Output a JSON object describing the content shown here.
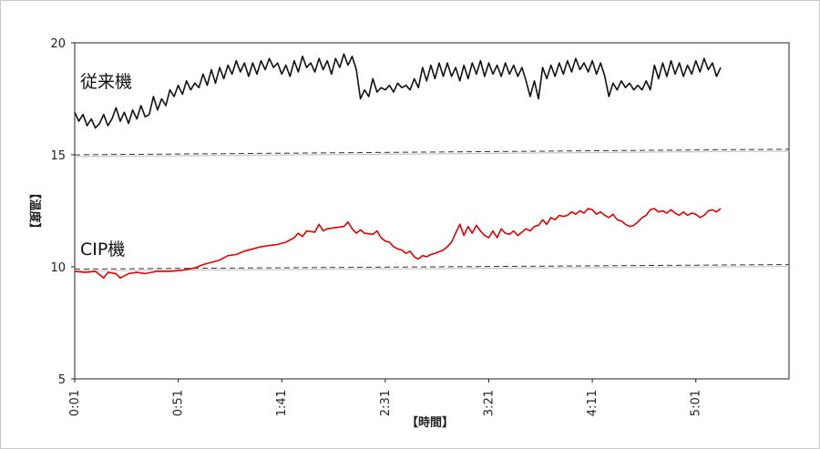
{
  "chart_data": {
    "type": "line",
    "xlabel": "【時間】",
    "ylabel": "【温度】",
    "ylim": [
      5,
      20
    ],
    "yticks": [
      5,
      10,
      15,
      20
    ],
    "x_tick_labels": [
      "0:01",
      "0:51",
      "1:41",
      "2:31",
      "3:21",
      "4:11",
      "5:01"
    ],
    "x_tick_positions_min": [
      1,
      51,
      101,
      151,
      201,
      251,
      301
    ],
    "xlim_min": [
      1,
      346
    ],
    "grid": false,
    "series": [
      {
        "name": "従来機",
        "color": "#111111",
        "points": [
          [
            1,
            16.9
          ],
          [
            3,
            16.5
          ],
          [
            5,
            16.8
          ],
          [
            7,
            16.3
          ],
          [
            9,
            16.6
          ],
          [
            11,
            16.2
          ],
          [
            13,
            16.4
          ],
          [
            15,
            16.8
          ],
          [
            17,
            16.3
          ],
          [
            19,
            16.6
          ],
          [
            21,
            17.1
          ],
          [
            23,
            16.5
          ],
          [
            25,
            16.9
          ],
          [
            27,
            16.4
          ],
          [
            29,
            17.0
          ],
          [
            31,
            16.6
          ],
          [
            33,
            17.2
          ],
          [
            35,
            16.7
          ],
          [
            37,
            16.8
          ],
          [
            39,
            17.6
          ],
          [
            41,
            17.0
          ],
          [
            43,
            17.5
          ],
          [
            45,
            17.2
          ],
          [
            47,
            17.9
          ],
          [
            49,
            17.6
          ],
          [
            51,
            18.1
          ],
          [
            53,
            17.7
          ],
          [
            55,
            18.3
          ],
          [
            57,
            17.9
          ],
          [
            59,
            18.2
          ],
          [
            61,
            18.0
          ],
          [
            63,
            18.6
          ],
          [
            65,
            18.1
          ],
          [
            67,
            18.8
          ],
          [
            69,
            18.2
          ],
          [
            71,
            18.9
          ],
          [
            73,
            18.4
          ],
          [
            75,
            19.0
          ],
          [
            77,
            18.6
          ],
          [
            79,
            19.2
          ],
          [
            81,
            18.7
          ],
          [
            83,
            19.1
          ],
          [
            85,
            18.5
          ],
          [
            87,
            19.1
          ],
          [
            89,
            18.6
          ],
          [
            91,
            19.2
          ],
          [
            93,
            18.8
          ],
          [
            95,
            19.3
          ],
          [
            97,
            18.9
          ],
          [
            99,
            19.1
          ],
          [
            101,
            18.6
          ],
          [
            103,
            19.0
          ],
          [
            105,
            18.5
          ],
          [
            107,
            19.2
          ],
          [
            109,
            18.7
          ],
          [
            111,
            19.4
          ],
          [
            113,
            18.9
          ],
          [
            115,
            19.1
          ],
          [
            117,
            18.7
          ],
          [
            119,
            19.3
          ],
          [
            121,
            18.8
          ],
          [
            123,
            19.2
          ],
          [
            125,
            18.6
          ],
          [
            127,
            19.3
          ],
          [
            129,
            18.9
          ],
          [
            131,
            19.5
          ],
          [
            133,
            19.0
          ],
          [
            135,
            19.4
          ],
          [
            137,
            18.8
          ],
          [
            139,
            17.5
          ],
          [
            141,
            17.9
          ],
          [
            143,
            17.6
          ],
          [
            145,
            18.4
          ],
          [
            147,
            17.8
          ],
          [
            149,
            18.0
          ],
          [
            151,
            17.9
          ],
          [
            153,
            18.1
          ],
          [
            155,
            17.8
          ],
          [
            157,
            18.2
          ],
          [
            159,
            18.0
          ],
          [
            161,
            18.1
          ],
          [
            163,
            17.9
          ],
          [
            165,
            18.4
          ],
          [
            167,
            18.0
          ],
          [
            169,
            18.9
          ],
          [
            171,
            18.3
          ],
          [
            173,
            19.0
          ],
          [
            175,
            18.4
          ],
          [
            177,
            19.1
          ],
          [
            179,
            18.5
          ],
          [
            181,
            19.1
          ],
          [
            183,
            18.5
          ],
          [
            185,
            18.9
          ],
          [
            187,
            18.3
          ],
          [
            189,
            19.0
          ],
          [
            191,
            18.4
          ],
          [
            193,
            19.1
          ],
          [
            195,
            18.6
          ],
          [
            197,
            19.2
          ],
          [
            199,
            18.5
          ],
          [
            201,
            19.1
          ],
          [
            203,
            18.6
          ],
          [
            205,
            19.0
          ],
          [
            207,
            18.5
          ],
          [
            209,
            19.1
          ],
          [
            211,
            18.6
          ],
          [
            213,
            19.0
          ],
          [
            215,
            18.5
          ],
          [
            217,
            18.9
          ],
          [
            219,
            18.3
          ],
          [
            221,
            17.6
          ],
          [
            223,
            18.3
          ],
          [
            225,
            17.5
          ],
          [
            227,
            18.9
          ],
          [
            229,
            18.4
          ],
          [
            231,
            19.0
          ],
          [
            233,
            18.5
          ],
          [
            235,
            19.1
          ],
          [
            237,
            18.6
          ],
          [
            239,
            19.2
          ],
          [
            241,
            18.7
          ],
          [
            243,
            19.3
          ],
          [
            245,
            18.8
          ],
          [
            247,
            19.1
          ],
          [
            249,
            18.7
          ],
          [
            251,
            19.2
          ],
          [
            253,
            18.6
          ],
          [
            255,
            19.1
          ],
          [
            257,
            18.5
          ],
          [
            259,
            17.6
          ],
          [
            261,
            18.2
          ],
          [
            263,
            17.9
          ],
          [
            265,
            18.3
          ],
          [
            267,
            18.0
          ],
          [
            269,
            18.2
          ],
          [
            271,
            17.9
          ],
          [
            273,
            18.1
          ],
          [
            275,
            17.9
          ],
          [
            277,
            18.3
          ],
          [
            279,
            17.9
          ],
          [
            281,
            19.0
          ],
          [
            283,
            18.4
          ],
          [
            285,
            19.1
          ],
          [
            287,
            18.5
          ],
          [
            289,
            19.2
          ],
          [
            291,
            18.6
          ],
          [
            293,
            19.1
          ],
          [
            295,
            18.5
          ],
          [
            297,
            19.0
          ],
          [
            299,
            18.6
          ],
          [
            301,
            19.2
          ],
          [
            303,
            18.7
          ],
          [
            305,
            19.3
          ],
          [
            307,
            18.8
          ],
          [
            309,
            19.1
          ],
          [
            311,
            18.5
          ],
          [
            313,
            18.9
          ]
        ]
      },
      {
        "name": "CIP機",
        "color": "#e10000",
        "points": [
          [
            1,
            9.8
          ],
          [
            6,
            9.75
          ],
          [
            11,
            9.8
          ],
          [
            15,
            9.5
          ],
          [
            17,
            9.75
          ],
          [
            21,
            9.7
          ],
          [
            23,
            9.5
          ],
          [
            27,
            9.7
          ],
          [
            31,
            9.75
          ],
          [
            35,
            9.7
          ],
          [
            41,
            9.8
          ],
          [
            47,
            9.8
          ],
          [
            53,
            9.85
          ],
          [
            59,
            9.95
          ],
          [
            63,
            10.1
          ],
          [
            67,
            10.2
          ],
          [
            71,
            10.3
          ],
          [
            75,
            10.5
          ],
          [
            79,
            10.55
          ],
          [
            83,
            10.7
          ],
          [
            87,
            10.8
          ],
          [
            91,
            10.9
          ],
          [
            95,
            10.95
          ],
          [
            99,
            11.0
          ],
          [
            103,
            11.1
          ],
          [
            107,
            11.3
          ],
          [
            109,
            11.5
          ],
          [
            111,
            11.35
          ],
          [
            113,
            11.6
          ],
          [
            117,
            11.55
          ],
          [
            119,
            11.9
          ],
          [
            121,
            11.6
          ],
          [
            123,
            11.7
          ],
          [
            127,
            11.75
          ],
          [
            131,
            11.8
          ],
          [
            133,
            12.0
          ],
          [
            135,
            11.7
          ],
          [
            137,
            11.5
          ],
          [
            139,
            11.65
          ],
          [
            141,
            11.5
          ],
          [
            145,
            11.45
          ],
          [
            147,
            11.6
          ],
          [
            149,
            11.3
          ],
          [
            151,
            11.15
          ],
          [
            153,
            11.1
          ],
          [
            155,
            10.9
          ],
          [
            157,
            10.8
          ],
          [
            159,
            10.75
          ],
          [
            161,
            10.6
          ],
          [
            163,
            10.7
          ],
          [
            165,
            10.45
          ],
          [
            167,
            10.35
          ],
          [
            169,
            10.5
          ],
          [
            171,
            10.45
          ],
          [
            173,
            10.55
          ],
          [
            175,
            10.6
          ],
          [
            179,
            10.75
          ],
          [
            181,
            10.9
          ],
          [
            183,
            11.1
          ],
          [
            185,
            11.5
          ],
          [
            187,
            11.9
          ],
          [
            189,
            11.4
          ],
          [
            191,
            11.8
          ],
          [
            193,
            11.5
          ],
          [
            195,
            11.85
          ],
          [
            197,
            11.6
          ],
          [
            199,
            11.4
          ],
          [
            201,
            11.3
          ],
          [
            203,
            11.6
          ],
          [
            205,
            11.3
          ],
          [
            207,
            11.7
          ],
          [
            209,
            11.5
          ],
          [
            211,
            11.45
          ],
          [
            213,
            11.6
          ],
          [
            215,
            11.4
          ],
          [
            217,
            11.55
          ],
          [
            219,
            11.7
          ],
          [
            221,
            11.6
          ],
          [
            223,
            11.8
          ],
          [
            225,
            11.85
          ],
          [
            227,
            12.1
          ],
          [
            229,
            11.9
          ],
          [
            231,
            12.2
          ],
          [
            233,
            12.1
          ],
          [
            235,
            12.3
          ],
          [
            237,
            12.25
          ],
          [
            239,
            12.3
          ],
          [
            241,
            12.45
          ],
          [
            243,
            12.35
          ],
          [
            245,
            12.5
          ],
          [
            247,
            12.4
          ],
          [
            249,
            12.6
          ],
          [
            251,
            12.55
          ],
          [
            253,
            12.35
          ],
          [
            255,
            12.45
          ],
          [
            257,
            12.3
          ],
          [
            259,
            12.2
          ],
          [
            261,
            12.35
          ],
          [
            263,
            12.1
          ],
          [
            265,
            12.05
          ],
          [
            267,
            11.9
          ],
          [
            269,
            11.8
          ],
          [
            271,
            11.85
          ],
          [
            273,
            12.0
          ],
          [
            275,
            12.2
          ],
          [
            277,
            12.3
          ],
          [
            279,
            12.55
          ],
          [
            281,
            12.6
          ],
          [
            283,
            12.45
          ],
          [
            285,
            12.5
          ],
          [
            287,
            12.4
          ],
          [
            289,
            12.55
          ],
          [
            291,
            12.4
          ],
          [
            293,
            12.3
          ],
          [
            295,
            12.45
          ],
          [
            297,
            12.3
          ],
          [
            299,
            12.4
          ],
          [
            301,
            12.35
          ],
          [
            303,
            12.2
          ],
          [
            305,
            12.3
          ],
          [
            307,
            12.5
          ],
          [
            309,
            12.55
          ],
          [
            311,
            12.45
          ],
          [
            313,
            12.6
          ]
        ]
      }
    ],
    "reference_lines": [
      {
        "from": [
          1,
          15.0
        ],
        "to": [
          346,
          15.25
        ],
        "style": "dashed",
        "color": "#333333"
      },
      {
        "from": [
          1,
          9.9
        ],
        "to": [
          346,
          10.1
        ],
        "style": "dashed",
        "color": "#333333"
      }
    ]
  }
}
